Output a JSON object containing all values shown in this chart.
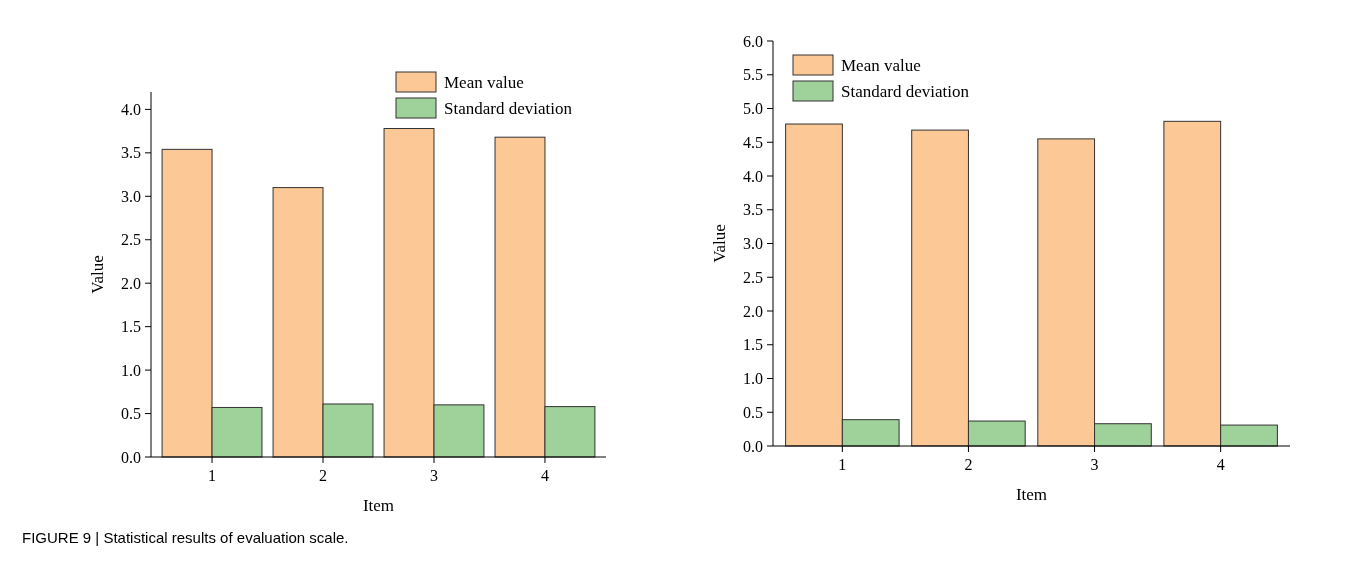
{
  "chart_data": [
    {
      "type": "bar",
      "xlabel": "Item",
      "ylabel": "Value",
      "categories": [
        "1",
        "2",
        "3",
        "4"
      ],
      "series": [
        {
          "name": "Mean value",
          "color": "#fcc896",
          "values": [
            3.54,
            3.1,
            3.78,
            3.68
          ]
        },
        {
          "name": "Standard deviation",
          "color": "#9fd19a",
          "values": [
            0.57,
            0.61,
            0.6,
            0.58
          ]
        }
      ],
      "ylim": [
        0,
        4.2
      ],
      "yticks": [
        {
          "value": 0,
          "label": "0.0"
        },
        0.5,
        {
          "value": 1,
          "label": "1.0"
        },
        1.5,
        {
          "value": 2,
          "label": "2.0"
        },
        2.5,
        {
          "value": 3,
          "label": "3.0"
        },
        3.5,
        {
          "value": 4,
          "label": "4.0"
        }
      ],
      "legend": "top right",
      "grid": false,
      "annotations": [
        "FIGURE 9 | Statistical results of evaluation scale."
      ]
    },
    {
      "type": "bar",
      "xlabel": "Item",
      "ylabel": "Value",
      "categories": [
        "1",
        "2",
        "3",
        "4"
      ],
      "series": [
        {
          "name": "Mean value",
          "color": "#fcc896",
          "values": [
            4.77,
            4.68,
            4.55,
            4.81
          ]
        },
        {
          "name": "Standard deviation",
          "color": "#9fd19a",
          "values": [
            0.39,
            0.37,
            0.33,
            0.31
          ]
        }
      ],
      "ylim": [
        0,
        6.0
      ],
      "yticks": [
        {
          "value": 0,
          "label": "0.0"
        },
        0.5,
        {
          "value": 1,
          "label": "1.0"
        },
        1.5,
        {
          "value": 2,
          "label": "2.0"
        },
        2.5,
        {
          "value": 3,
          "label": "3.0"
        },
        3.5,
        {
          "value": 4,
          "label": "4.0"
        },
        4.5,
        {
          "value": 5,
          "label": "5.0"
        },
        5.5,
        {
          "value": 6,
          "label": "6.0"
        }
      ],
      "legend": "top left",
      "grid": false
    }
  ]
}
